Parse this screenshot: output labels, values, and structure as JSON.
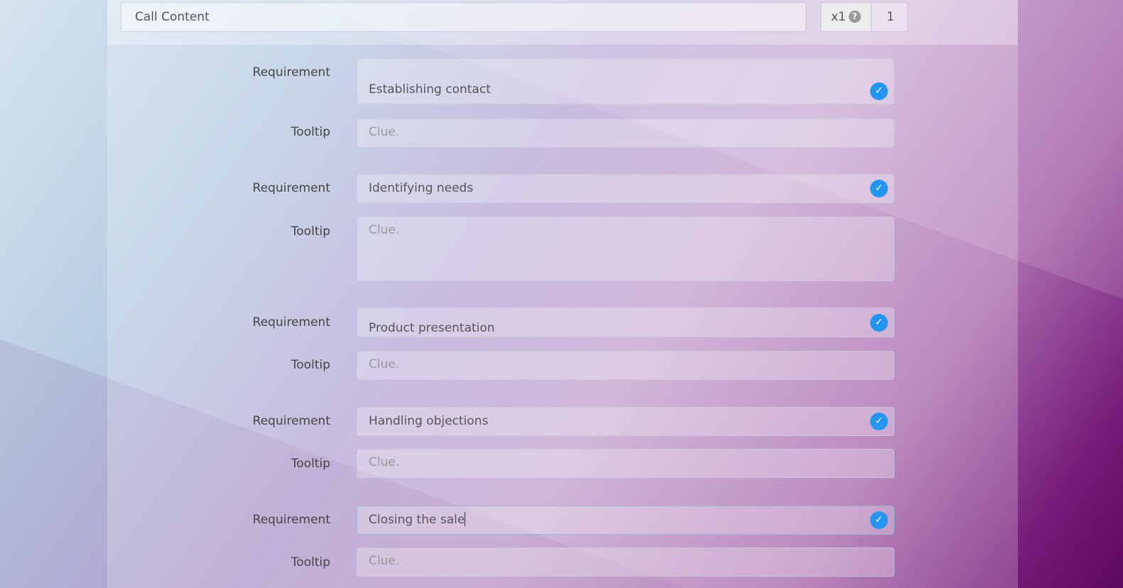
{
  "header": {
    "title_value": "Call Content",
    "multiplier_label": "x1",
    "help_icon": "question-circle-icon",
    "count_value": "1"
  },
  "accent": "#2196f3",
  "rows": [
    {
      "req_label": "Requirement",
      "req_value": "Establishing contact",
      "tip_label": "Tooltip",
      "tip_placeholder": "Clue."
    },
    {
      "req_label": "Requirement",
      "req_value": "Identifying needs",
      "tip_label": "Tooltip",
      "tip_placeholder": "Clue."
    },
    {
      "req_label": "Requirement",
      "req_value": "Product presentation",
      "tip_label": "Tooltip",
      "tip_placeholder": "Clue."
    },
    {
      "req_label": "Requirement",
      "req_value": "Handling objections",
      "tip_label": "Tooltip",
      "tip_placeholder": "Clue."
    },
    {
      "req_label": "Requirement",
      "req_value": "Closing the sale",
      "tip_label": "Tooltip",
      "tip_placeholder": "Clue."
    }
  ]
}
